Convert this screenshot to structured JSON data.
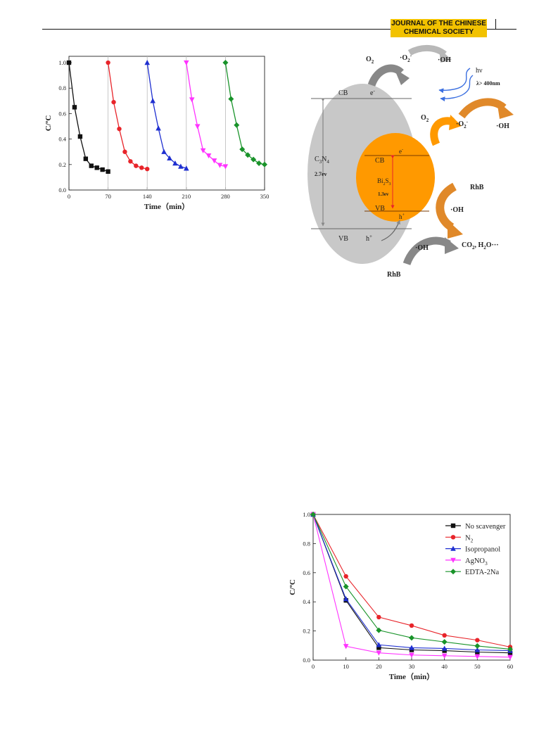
{
  "header": {
    "journal_line1": "JOURNAL OF THE CHINESE",
    "journal_line2": "CHEMICAL SOCIETY"
  },
  "colors": {
    "black": "#111111",
    "red": "#e8242a",
    "blue": "#1f2fd0",
    "magenta": "#ff33ff",
    "green": "#19932a",
    "orange": "#ff9900",
    "gray": "#c8c8c8"
  },
  "chart_data": [
    {
      "type": "line",
      "xlabel": "Time（min）",
      "ylabel": "C/ºC",
      "xlim": [
        0,
        350
      ],
      "ylim": [
        0,
        1.05
      ],
      "xticks": [
        0,
        70,
        140,
        210,
        280,
        350
      ],
      "yticks": [
        0.0,
        0.2,
        0.4,
        0.6,
        0.8,
        1.0
      ],
      "grid": false,
      "legend": "none",
      "series": [
        {
          "color": "#111111",
          "marker": "square",
          "x": [
            0,
            10,
            20,
            30,
            40,
            50,
            60,
            70
          ],
          "y": [
            1.0,
            0.65,
            0.42,
            0.245,
            0.19,
            0.175,
            0.16,
            0.145
          ]
        },
        {
          "color": "#e8242a",
          "marker": "circle",
          "x": [
            70,
            80,
            90,
            100,
            110,
            120,
            130,
            140
          ],
          "y": [
            1.0,
            0.69,
            0.48,
            0.3,
            0.225,
            0.19,
            0.175,
            0.165
          ]
        },
        {
          "color": "#1f2fd0",
          "marker": "triangle-up",
          "x": [
            140,
            150,
            160,
            170,
            180,
            190,
            200,
            210
          ],
          "y": [
            1.0,
            0.7,
            0.485,
            0.3,
            0.25,
            0.21,
            0.185,
            0.17
          ]
        },
        {
          "color": "#ff33ff",
          "marker": "triangle-down",
          "x": [
            210,
            220,
            230,
            240,
            250,
            260,
            270,
            280
          ],
          "y": [
            1.0,
            0.71,
            0.5,
            0.31,
            0.27,
            0.23,
            0.195,
            0.185
          ]
        },
        {
          "color": "#19932a",
          "marker": "diamond",
          "x": [
            280,
            290,
            300,
            310,
            320,
            330,
            340,
            350
          ],
          "y": [
            1.0,
            0.715,
            0.51,
            0.32,
            0.275,
            0.24,
            0.21,
            0.2
          ]
        }
      ],
      "separators_x": [
        70,
        140,
        210,
        280
      ]
    },
    {
      "type": "line",
      "xlabel": "Time（min）",
      "ylabel": "C/ºC",
      "xlim": [
        0,
        60
      ],
      "ylim": [
        0,
        1.0
      ],
      "xticks": [
        0,
        10,
        20,
        30,
        40,
        50,
        60
      ],
      "yticks": [
        0.0,
        0.2,
        0.4,
        0.6,
        0.8,
        1.0
      ],
      "grid": false,
      "legend": "top-right",
      "x": [
        0,
        10,
        20,
        30,
        40,
        50,
        60
      ],
      "series": [
        {
          "name": "No scavenger",
          "color": "#111111",
          "marker": "square",
          "values": [
            1.0,
            0.41,
            0.085,
            0.07,
            0.065,
            0.055,
            0.05
          ]
        },
        {
          "name": "N",
          "sub": "2",
          "color": "#e8242a",
          "marker": "circle",
          "values": [
            1.0,
            0.575,
            0.295,
            0.237,
            0.17,
            0.137,
            0.09
          ]
        },
        {
          "name": "Isopropanol",
          "color": "#1f2fd0",
          "marker": "triangle-up",
          "values": [
            1.0,
            0.42,
            0.105,
            0.085,
            0.08,
            0.07,
            0.065
          ]
        },
        {
          "name": "AgNO",
          "sub": "3",
          "color": "#ff33ff",
          "marker": "triangle-down",
          "values": [
            1.0,
            0.095,
            0.05,
            0.035,
            0.03,
            0.025,
            0.02
          ]
        },
        {
          "name": "EDTA-2Na",
          "color": "#19932a",
          "marker": "diamond",
          "values": [
            1.0,
            0.505,
            0.205,
            0.153,
            0.125,
            0.097,
            0.075
          ]
        }
      ]
    }
  ],
  "diagram": {
    "o2_top": "O",
    "o2_top_sub": "2",
    "o2rad_top": "·O",
    "o2rad_top_sup": "-",
    "o2rad_top_sub": "2",
    "oh_top": "·OH",
    "hv": "hν",
    "lambda": "λ> 400nm",
    "o2_right": "O",
    "o2_right_sub": "2",
    "o2rad_right": "·O",
    "o2rad_right_sup": "-",
    "o2rad_right_sub": "2",
    "oh_right": "·OH",
    "cb_c3n4": "CB",
    "e_c3n4": "e",
    "e_c3n4_sup": "-",
    "c3n4_label": "C",
    "c3n4_sub1": "3",
    "c3n4_mid": "N",
    "c3n4_sub2": "4",
    "c3n4_gap": "2.7ev",
    "cb_bi": "CB",
    "e_bi": "e",
    "e_bi_sup": "-",
    "bi_label": "Bi",
    "bi_sub1": "2",
    "bi_mid": "S",
    "bi_sub2": "3",
    "bi_gap": "1.3ev",
    "vb_bi": "VB",
    "h_bi": "h",
    "h_bi_sup": "+",
    "vb_c3n4": "VB",
    "h_c3n4": "h",
    "h_c3n4_sup": "+",
    "rhb_right": "RhB",
    "oh_mid": "·OH",
    "products": "CO",
    "products_sub": "2",
    "products_rest": ", H",
    "products_sub2": "2",
    "products_end": "O···",
    "oh_bottom": "·OH",
    "rhb_bottom": "RhB"
  }
}
